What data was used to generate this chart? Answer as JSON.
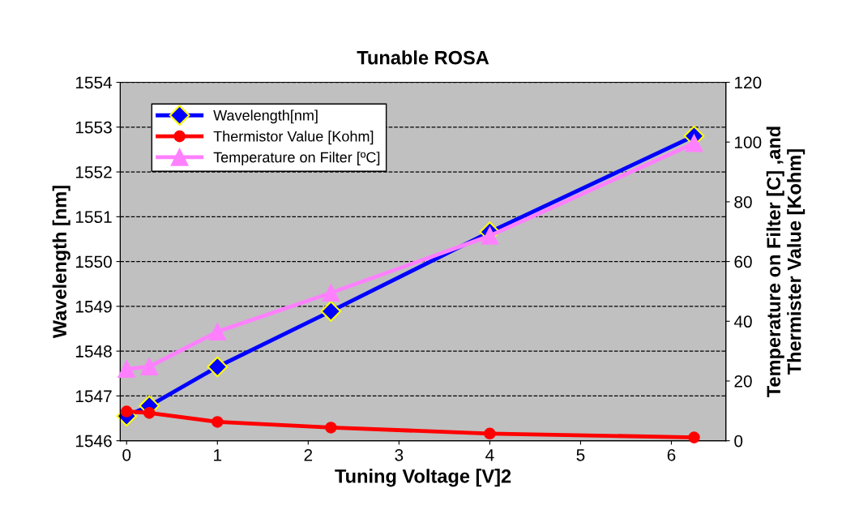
{
  "chart_data": {
    "type": "line",
    "title": "Tunable ROSA",
    "xlabel": "Tuning Voltage [V]2",
    "ylabel": "Wavelength [nm]",
    "y2label": "Temperature on Filter [C] ,and\nThermister Value [Kohm]",
    "x": [
      0,
      0.25,
      1,
      2.25,
      4,
      6.25
    ],
    "series": [
      {
        "name": "Wavelength[nm]",
        "color": "#0000ff",
        "marker": "diamond",
        "values": [
          1546.55,
          1546.78,
          1547.65,
          1548.89,
          1550.66,
          1552.8
        ]
      },
      {
        "name": "Thermistor Value [Kohm]",
        "color": "#ff0000",
        "marker": "circle",
        "axis": "y2",
        "values": [
          9.8,
          9.3,
          6.3,
          4.4,
          2.4,
          1.1
        ]
      },
      {
        "name": "Temperature on Filter [ºC]",
        "color": "#ff80ff",
        "marker": "triangle",
        "axis": "y2",
        "values": [
          24,
          24.8,
          36.5,
          49.5,
          68.6,
          99.6
        ]
      }
    ],
    "xlim": [
      -0.07,
      6.6
    ],
    "xticks": [
      0,
      1,
      2,
      3,
      4,
      5,
      6
    ],
    "ylim": [
      1546,
      1554
    ],
    "yticks": [
      1546,
      1547,
      1548,
      1549,
      1550,
      1551,
      1552,
      1553,
      1554
    ],
    "y2lim": [
      0,
      120
    ],
    "y2ticks": [
      0,
      20,
      40,
      60,
      80,
      100,
      120
    ],
    "grid": "y",
    "legend": "top left",
    "line_style": "solid"
  }
}
